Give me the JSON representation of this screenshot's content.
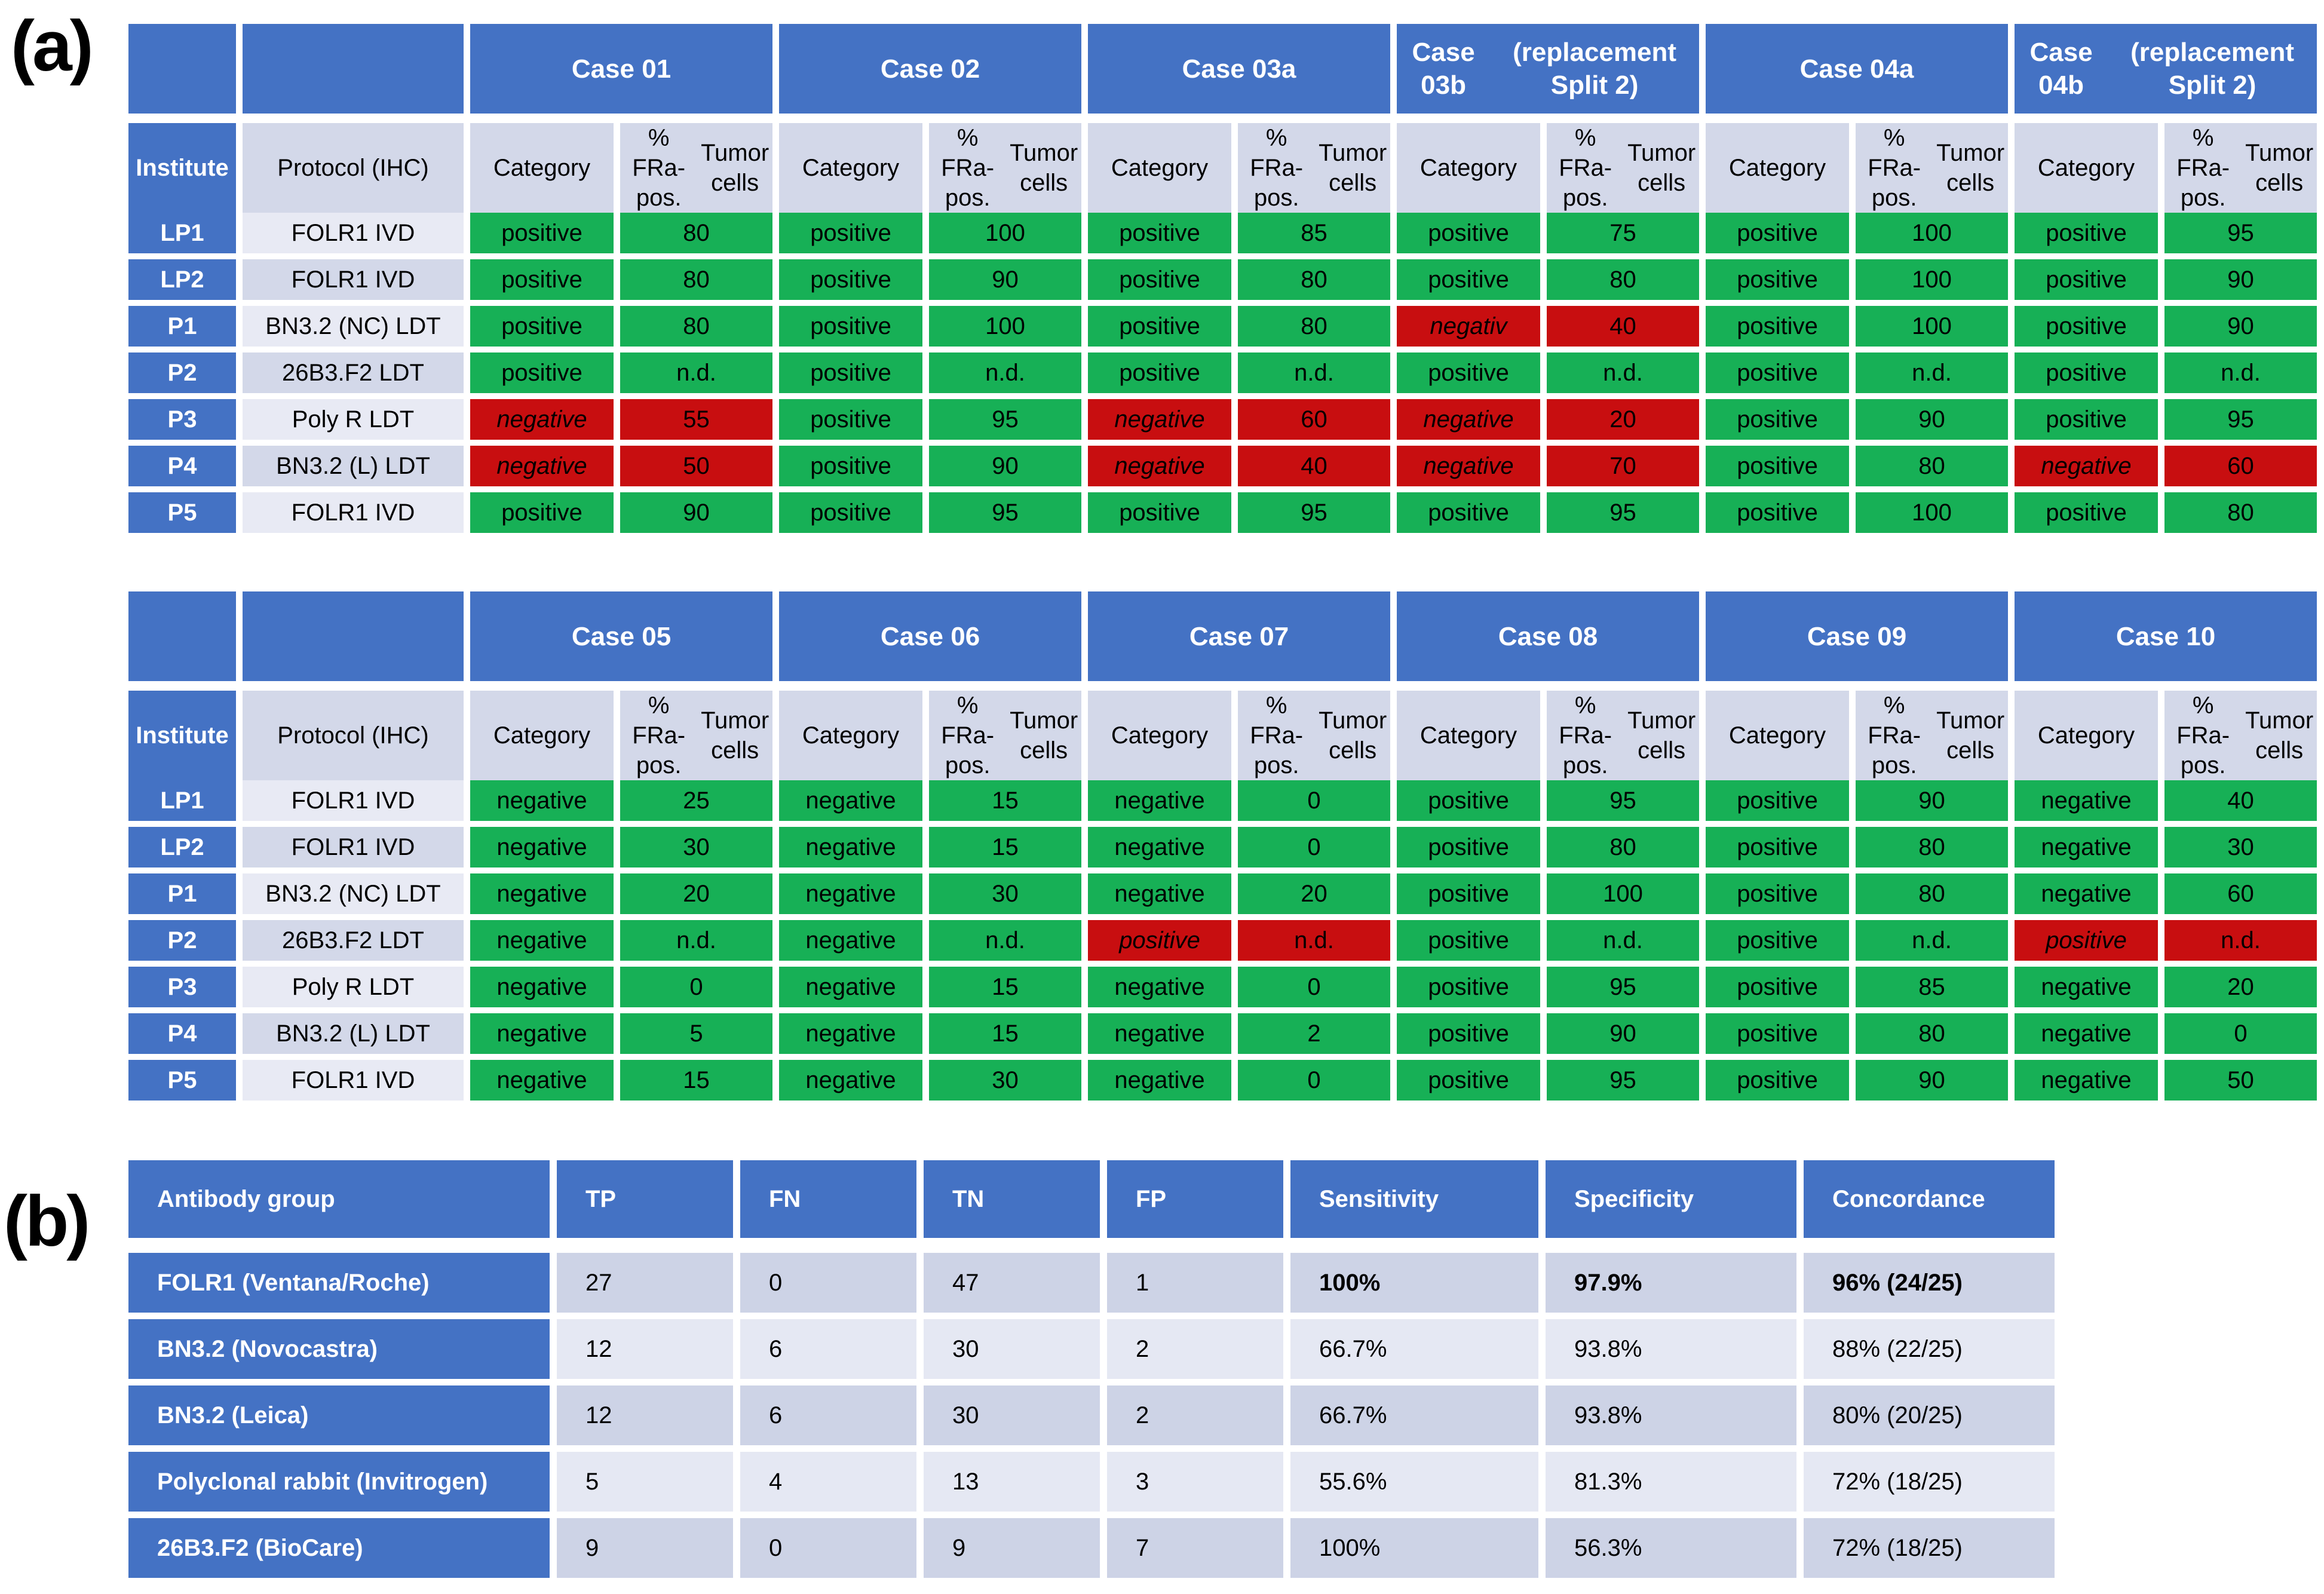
{
  "panels": {
    "a": "(a)",
    "b": "(b)"
  },
  "colors": {
    "header_blue": "#4472C4",
    "lavender_dark": "#D3D8E9",
    "lavender_light": "#E8EAF4",
    "summary_row_dark": "#CDD3E6",
    "summary_row_light": "#E5E8F3",
    "positive_green": "#17B056",
    "discordant_red": "#C80E10"
  },
  "case_table_headers": {
    "institute": "Institute",
    "protocol": "Protocol (IHC)",
    "category": "Category",
    "fra_line1": "% FRa-pos.",
    "fra_line2": "Tumor cells"
  },
  "table1": {
    "cases": [
      {
        "line1": "Case 01",
        "line2": ""
      },
      {
        "line1": "Case 02",
        "line2": ""
      },
      {
        "line1": "Case 03a",
        "line2": ""
      },
      {
        "line1": "Case 03b",
        "line2": "(replacement Split 2)"
      },
      {
        "line1": "Case 04a",
        "line2": ""
      },
      {
        "line1": "Case 04b",
        "line2": "(replacement Split 2)"
      }
    ],
    "rows": [
      {
        "institute": "LP1",
        "protocol": "FOLR1 IVD",
        "cells": [
          {
            "cat": "positive",
            "val": "80",
            "state": "green"
          },
          {
            "cat": "positive",
            "val": "100",
            "state": "green"
          },
          {
            "cat": "positive",
            "val": "85",
            "state": "green"
          },
          {
            "cat": "positive",
            "val": "75",
            "state": "green"
          },
          {
            "cat": "positive",
            "val": "100",
            "state": "green"
          },
          {
            "cat": "positive",
            "val": "95",
            "state": "green"
          }
        ]
      },
      {
        "institute": "LP2",
        "protocol": "FOLR1 IVD",
        "cells": [
          {
            "cat": "positive",
            "val": "80",
            "state": "green"
          },
          {
            "cat": "positive",
            "val": "90",
            "state": "green"
          },
          {
            "cat": "positive",
            "val": "80",
            "state": "green"
          },
          {
            "cat": "positive",
            "val": "80",
            "state": "green"
          },
          {
            "cat": "positive",
            "val": "100",
            "state": "green"
          },
          {
            "cat": "positive",
            "val": "90",
            "state": "green"
          }
        ]
      },
      {
        "institute": "P1",
        "protocol": "BN3.2 (NC) LDT",
        "cells": [
          {
            "cat": "positive",
            "val": "80",
            "state": "green"
          },
          {
            "cat": "positive",
            "val": "100",
            "state": "green"
          },
          {
            "cat": "positive",
            "val": "80",
            "state": "green"
          },
          {
            "cat": "negativ",
            "val": "40",
            "state": "red"
          },
          {
            "cat": "positive",
            "val": "100",
            "state": "green"
          },
          {
            "cat": "positive",
            "val": "90",
            "state": "green"
          }
        ]
      },
      {
        "institute": "P2",
        "protocol": "26B3.F2 LDT",
        "cells": [
          {
            "cat": "positive",
            "val": "n.d.",
            "state": "green"
          },
          {
            "cat": "positive",
            "val": "n.d.",
            "state": "green"
          },
          {
            "cat": "positive",
            "val": "n.d.",
            "state": "green"
          },
          {
            "cat": "positive",
            "val": "n.d.",
            "state": "green"
          },
          {
            "cat": "positive",
            "val": "n.d.",
            "state": "green"
          },
          {
            "cat": "positive",
            "val": "n.d.",
            "state": "green"
          }
        ]
      },
      {
        "institute": "P3",
        "protocol": "Poly R LDT",
        "cells": [
          {
            "cat": "negative",
            "val": "55",
            "state": "red"
          },
          {
            "cat": "positive",
            "val": "95",
            "state": "green"
          },
          {
            "cat": "negative",
            "val": "60",
            "state": "red"
          },
          {
            "cat": "negative",
            "val": "20",
            "state": "red"
          },
          {
            "cat": "positive",
            "val": "90",
            "state": "green"
          },
          {
            "cat": "positive",
            "val": "95",
            "state": "green"
          }
        ]
      },
      {
        "institute": "P4",
        "protocol": "BN3.2 (L) LDT",
        "cells": [
          {
            "cat": "negative",
            "val": "50",
            "state": "red"
          },
          {
            "cat": "positive",
            "val": "90",
            "state": "green"
          },
          {
            "cat": "negative",
            "val": "40",
            "state": "red"
          },
          {
            "cat": "negative",
            "val": "70",
            "state": "red"
          },
          {
            "cat": "positive",
            "val": "80",
            "state": "green"
          },
          {
            "cat": "negative",
            "val": "60",
            "state": "red"
          }
        ]
      },
      {
        "institute": "P5",
        "protocol": "FOLR1 IVD",
        "cells": [
          {
            "cat": "positive",
            "val": "90",
            "state": "green"
          },
          {
            "cat": "positive",
            "val": "95",
            "state": "green"
          },
          {
            "cat": "positive",
            "val": "95",
            "state": "green"
          },
          {
            "cat": "positive",
            "val": "95",
            "state": "green"
          },
          {
            "cat": "positive",
            "val": "100",
            "state": "green"
          },
          {
            "cat": "positive",
            "val": "80",
            "state": "green"
          }
        ]
      }
    ]
  },
  "table2": {
    "cases": [
      {
        "line1": "Case 05",
        "line2": ""
      },
      {
        "line1": "Case 06",
        "line2": ""
      },
      {
        "line1": "Case 07",
        "line2": ""
      },
      {
        "line1": "Case 08",
        "line2": ""
      },
      {
        "line1": "Case 09",
        "line2": ""
      },
      {
        "line1": "Case 10",
        "line2": ""
      }
    ],
    "rows": [
      {
        "institute": "LP1",
        "protocol": "FOLR1 IVD",
        "cells": [
          {
            "cat": "negative",
            "val": "25",
            "state": "green"
          },
          {
            "cat": "negative",
            "val": "15",
            "state": "green"
          },
          {
            "cat": "negative",
            "val": "0",
            "state": "green"
          },
          {
            "cat": "positive",
            "val": "95",
            "state": "green"
          },
          {
            "cat": "positive",
            "val": "90",
            "state": "green"
          },
          {
            "cat": "negative",
            "val": "40",
            "state": "green"
          }
        ]
      },
      {
        "institute": "LP2",
        "protocol": "FOLR1 IVD",
        "cells": [
          {
            "cat": "negative",
            "val": "30",
            "state": "green"
          },
          {
            "cat": "negative",
            "val": "15",
            "state": "green"
          },
          {
            "cat": "negative",
            "val": "0",
            "state": "green"
          },
          {
            "cat": "positive",
            "val": "80",
            "state": "green"
          },
          {
            "cat": "positive",
            "val": "80",
            "state": "green"
          },
          {
            "cat": "negative",
            "val": "30",
            "state": "green"
          }
        ]
      },
      {
        "institute": "P1",
        "protocol": "BN3.2 (NC) LDT",
        "cells": [
          {
            "cat": "negative",
            "val": "20",
            "state": "green"
          },
          {
            "cat": "negative",
            "val": "30",
            "state": "green"
          },
          {
            "cat": "negative",
            "val": "20",
            "state": "green"
          },
          {
            "cat": "positive",
            "val": "100",
            "state": "green"
          },
          {
            "cat": "positive",
            "val": "80",
            "state": "green"
          },
          {
            "cat": "negative",
            "val": "60",
            "state": "green"
          }
        ]
      },
      {
        "institute": "P2",
        "protocol": "26B3.F2 LDT",
        "cells": [
          {
            "cat": "negative",
            "val": "n.d.",
            "state": "green"
          },
          {
            "cat": "negative",
            "val": "n.d.",
            "state": "green"
          },
          {
            "cat": "positive",
            "val": "n.d.",
            "state": "red"
          },
          {
            "cat": "positive",
            "val": "n.d.",
            "state": "green"
          },
          {
            "cat": "positive",
            "val": "n.d.",
            "state": "green"
          },
          {
            "cat": "positive",
            "val": "n.d.",
            "state": "red"
          }
        ]
      },
      {
        "institute": "P3",
        "protocol": "Poly R LDT",
        "cells": [
          {
            "cat": "negative",
            "val": "0",
            "state": "green"
          },
          {
            "cat": "negative",
            "val": "15",
            "state": "green"
          },
          {
            "cat": "negative",
            "val": "0",
            "state": "green"
          },
          {
            "cat": "positive",
            "val": "95",
            "state": "green"
          },
          {
            "cat": "positive",
            "val": "85",
            "state": "green"
          },
          {
            "cat": "negative",
            "val": "20",
            "state": "green"
          }
        ]
      },
      {
        "institute": "P4",
        "protocol": "BN3.2 (L) LDT",
        "cells": [
          {
            "cat": "negative",
            "val": "5",
            "state": "green"
          },
          {
            "cat": "negative",
            "val": "15",
            "state": "green"
          },
          {
            "cat": "negative",
            "val": "2",
            "state": "green"
          },
          {
            "cat": "positive",
            "val": "90",
            "state": "green"
          },
          {
            "cat": "positive",
            "val": "80",
            "state": "green"
          },
          {
            "cat": "negative",
            "val": "0",
            "state": "green"
          }
        ]
      },
      {
        "institute": "P5",
        "protocol": "FOLR1 IVD",
        "cells": [
          {
            "cat": "negative",
            "val": "15",
            "state": "green"
          },
          {
            "cat": "negative",
            "val": "30",
            "state": "green"
          },
          {
            "cat": "negative",
            "val": "0",
            "state": "green"
          },
          {
            "cat": "positive",
            "val": "95",
            "state": "green"
          },
          {
            "cat": "positive",
            "val": "90",
            "state": "green"
          },
          {
            "cat": "negative",
            "val": "50",
            "state": "green"
          }
        ]
      }
    ]
  },
  "summary_table": {
    "headers": [
      "Antibody group",
      "TP",
      "FN",
      "TN",
      "FP",
      "Sensitivity",
      "Specificity",
      "Concordance"
    ],
    "rows": [
      {
        "group": "FOLR1 (Ventana/Roche)",
        "tp": "27",
        "fn": "0",
        "tn": "47",
        "fp": "1",
        "sensitivity": "100%",
        "specificity": "97.9%",
        "concordance": "96% (24/25)",
        "bold_metrics": true
      },
      {
        "group": "BN3.2 (Novocastra)",
        "tp": "12",
        "fn": "6",
        "tn": "30",
        "fp": "2",
        "sensitivity": "66.7%",
        "specificity": "93.8%",
        "concordance": "88% (22/25)",
        "bold_metrics": false
      },
      {
        "group": "BN3.2 (Leica)",
        "tp": "12",
        "fn": "6",
        "tn": "30",
        "fp": "2",
        "sensitivity": "66.7%",
        "specificity": "93.8%",
        "concordance": "80% (20/25)",
        "bold_metrics": false
      },
      {
        "group": "Polyclonal rabbit (Invitrogen)",
        "tp": "5",
        "fn": "4",
        "tn": "13",
        "fp": "3",
        "sensitivity": "55.6%",
        "specificity": "81.3%",
        "concordance": "72% (18/25)",
        "bold_metrics": false
      },
      {
        "group": "26B3.F2 (BioCare)",
        "tp": "9",
        "fn": "0",
        "tn": "9",
        "fp": "7",
        "sensitivity": "100%",
        "specificity": "56.3%",
        "concordance": "72% (18/25)",
        "bold_metrics": false
      }
    ]
  }
}
